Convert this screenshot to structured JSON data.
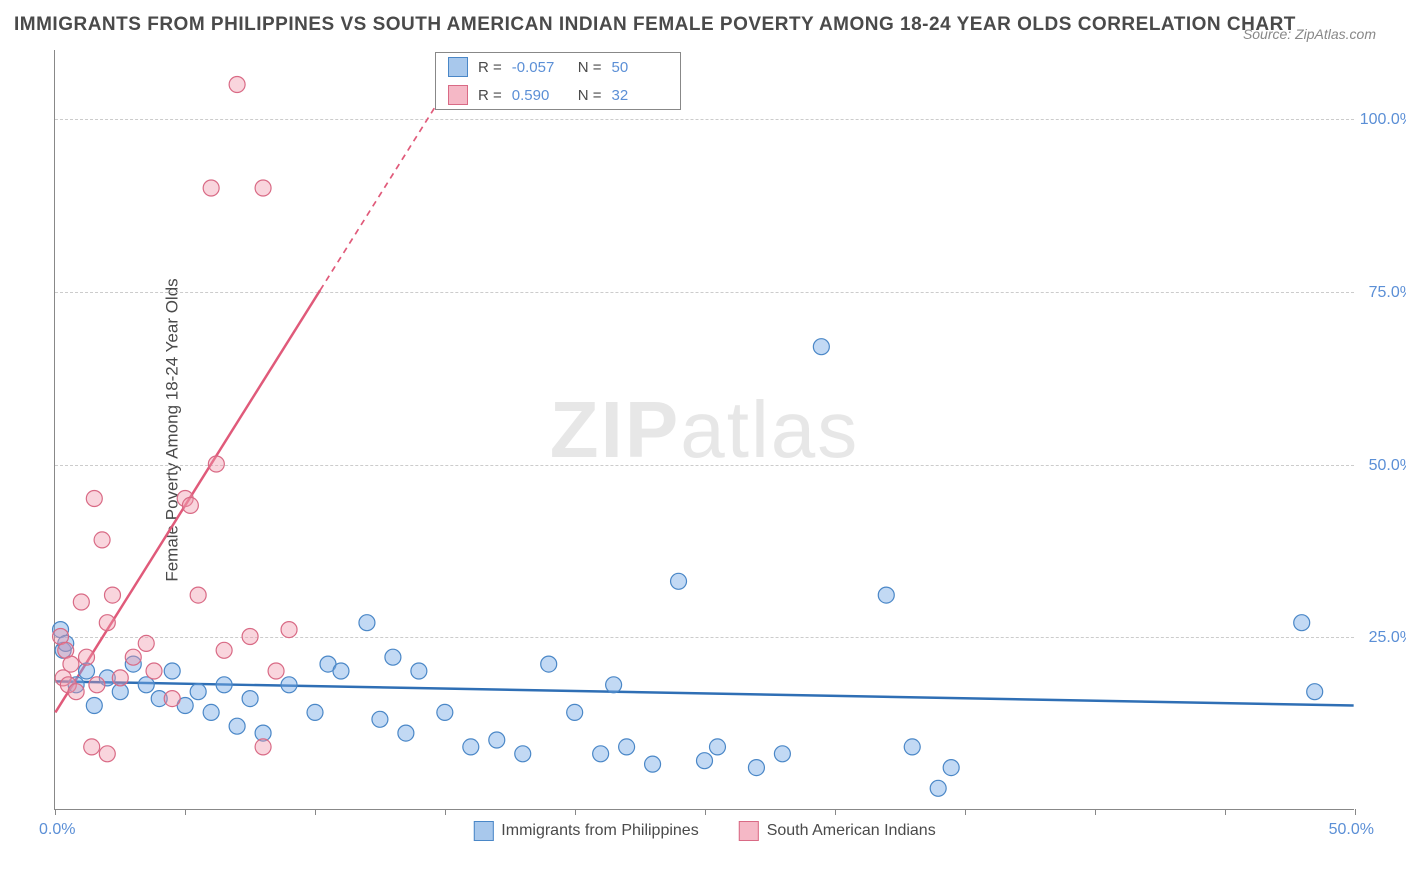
{
  "title": "IMMIGRANTS FROM PHILIPPINES VS SOUTH AMERICAN INDIAN FEMALE POVERTY AMONG 18-24 YEAR OLDS CORRELATION CHART",
  "source": "Source: ZipAtlas.com",
  "watermark_bold": "ZIP",
  "watermark_rest": "atlas",
  "y_axis_title": "Female Poverty Among 18-24 Year Olds",
  "chart": {
    "type": "scatter",
    "background_color": "#ffffff",
    "grid_color": "#cccccc",
    "axis_color": "#888888",
    "xlim": [
      0,
      50
    ],
    "ylim": [
      0,
      110
    ],
    "x_ticks": [
      0,
      5,
      10,
      15,
      20,
      25,
      30,
      35,
      40,
      45,
      50
    ],
    "y_grid": [
      25,
      50,
      75,
      100
    ],
    "y_tick_labels": [
      "25.0%",
      "50.0%",
      "75.0%",
      "100.0%"
    ],
    "x_label_0": "0.0%",
    "x_label_50": "50.0%",
    "marker_radius": 8,
    "marker_stroke_width": 1.2,
    "trend_line_width": 2.5,
    "series": [
      {
        "id": "philippines",
        "label": "Immigrants from Philippines",
        "R": "-0.057",
        "N": "50",
        "marker_fill": "rgba(120,170,230,0.45)",
        "marker_stroke": "#4a87c7",
        "swatch_fill": "#a8c8ec",
        "swatch_stroke": "#4a87c7",
        "line_color": "#2f6fb5",
        "line_dash": "none",
        "trend": {
          "x1": 0,
          "y1": 18.5,
          "x2": 50,
          "y2": 15.0
        },
        "points": [
          [
            0.2,
            26
          ],
          [
            0.3,
            23
          ],
          [
            0.4,
            24
          ],
          [
            0.8,
            18
          ],
          [
            1.2,
            20
          ],
          [
            1.5,
            15
          ],
          [
            2.0,
            19
          ],
          [
            2.5,
            17
          ],
          [
            3.0,
            21
          ],
          [
            3.5,
            18
          ],
          [
            4.0,
            16
          ],
          [
            4.5,
            20
          ],
          [
            5.0,
            15
          ],
          [
            5.5,
            17
          ],
          [
            6.0,
            14
          ],
          [
            6.5,
            18
          ],
          [
            7.0,
            12
          ],
          [
            7.5,
            16
          ],
          [
            8.0,
            11
          ],
          [
            9.0,
            18
          ],
          [
            10.0,
            14
          ],
          [
            10.5,
            21
          ],
          [
            11.0,
            20
          ],
          [
            12.0,
            27
          ],
          [
            12.5,
            13
          ],
          [
            13.0,
            22
          ],
          [
            13.5,
            11
          ],
          [
            14.0,
            20
          ],
          [
            15.0,
            14
          ],
          [
            16.0,
            9
          ],
          [
            17.0,
            10
          ],
          [
            18.0,
            8
          ],
          [
            19.0,
            21
          ],
          [
            20.0,
            14
          ],
          [
            21.0,
            8
          ],
          [
            21.5,
            18
          ],
          [
            22.0,
            9
          ],
          [
            23.0,
            6.5
          ],
          [
            24.0,
            33
          ],
          [
            25.0,
            7
          ],
          [
            25.5,
            9
          ],
          [
            27.0,
            6
          ],
          [
            28.0,
            8
          ],
          [
            29.5,
            67
          ],
          [
            32.0,
            31
          ],
          [
            33.0,
            9
          ],
          [
            34.0,
            3
          ],
          [
            34.5,
            6
          ],
          [
            48.0,
            27
          ],
          [
            48.5,
            17
          ]
        ]
      },
      {
        "id": "sai",
        "label": "South American Indians",
        "R": "0.590",
        "N": "32",
        "marker_fill": "rgba(240,150,170,0.40)",
        "marker_stroke": "#d96a85",
        "swatch_fill": "#f5b8c6",
        "swatch_stroke": "#d96a85",
        "line_color": "#e05a7a",
        "line_dash": "6,5",
        "trend": {
          "x1": 0,
          "y1": 14,
          "x2": 16,
          "y2": 110
        },
        "trend_solid_to_x": 10.2,
        "points": [
          [
            0.2,
            25
          ],
          [
            0.3,
            19
          ],
          [
            0.4,
            23
          ],
          [
            0.5,
            18
          ],
          [
            0.6,
            21
          ],
          [
            0.8,
            17
          ],
          [
            1.0,
            30
          ],
          [
            1.2,
            22
          ],
          [
            1.4,
            9
          ],
          [
            1.5,
            45
          ],
          [
            1.6,
            18
          ],
          [
            1.8,
            39
          ],
          [
            2.0,
            27
          ],
          [
            2.0,
            8
          ],
          [
            2.2,
            31
          ],
          [
            2.5,
            19
          ],
          [
            3.0,
            22
          ],
          [
            3.5,
            24
          ],
          [
            3.8,
            20
          ],
          [
            4.5,
            16
          ],
          [
            5.0,
            45
          ],
          [
            5.2,
            44
          ],
          [
            5.5,
            31
          ],
          [
            6.0,
            90
          ],
          [
            6.2,
            50
          ],
          [
            6.5,
            23
          ],
          [
            7.0,
            105
          ],
          [
            7.5,
            25
          ],
          [
            8.0,
            90
          ],
          [
            8.0,
            9
          ],
          [
            8.5,
            20
          ],
          [
            9.0,
            26
          ]
        ]
      }
    ]
  },
  "legend_top": {
    "r_prefix": "R =",
    "n_prefix": "N ="
  }
}
